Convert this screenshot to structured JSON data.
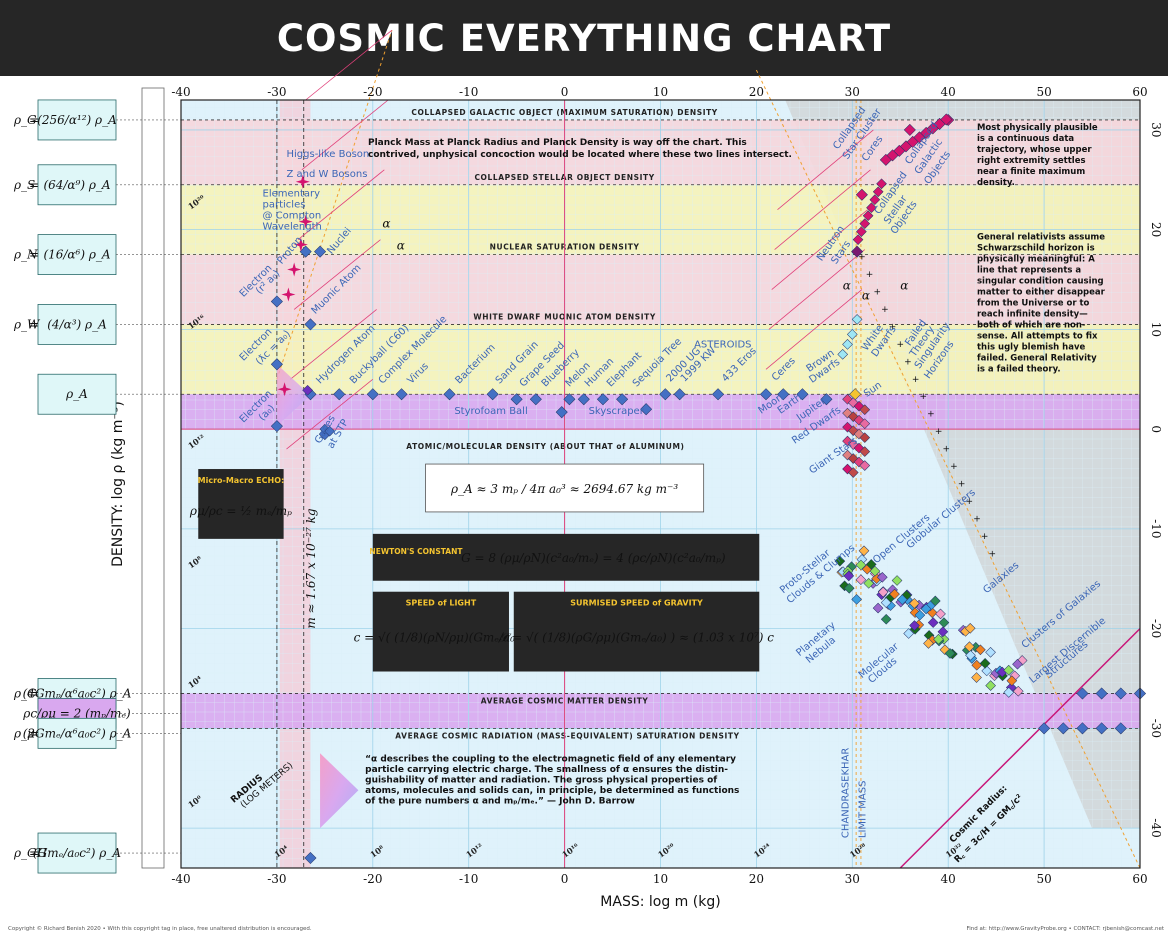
{
  "page": {
    "title": "COSMIC EVERYTHING CHART",
    "footer_left": "Copyright © Richard Benish 2020  •  With this copyright tag in place, free unaltered distribution is encouraged.",
    "footer_right": "Find at: http://www.GravityProbe.org  •  CONTACT: rjbenish@comcast.net"
  },
  "chart_data": {
    "type": "scatter",
    "xlabel": "MASS: log m (kg)",
    "ylabel": "DENSITY: log ρ (kg m⁻³)",
    "xlim": [
      -40,
      60
    ],
    "ylim": [
      -44,
      33
    ],
    "x_ticks": [
      -40,
      -30,
      -20,
      -10,
      0,
      10,
      20,
      30,
      40,
      50,
      60
    ],
    "y_ticks": [
      30,
      20,
      10,
      0,
      -10,
      -20,
      -30,
      -40
    ],
    "radius_ticks": [
      {
        "label": "10⁴",
        "x": -30,
        "y": -43
      },
      {
        "label": "10⁸",
        "x": -20,
        "y": -43
      },
      {
        "label": "10¹²",
        "x": -10,
        "y": -43
      },
      {
        "label": "10¹⁶",
        "x": 0,
        "y": -43
      },
      {
        "label": "10²⁰",
        "x": 10,
        "y": -43
      },
      {
        "label": "10²⁴",
        "x": 20,
        "y": -43
      },
      {
        "label": "10²⁸",
        "x": 30,
        "y": -43
      },
      {
        "label": "10³²",
        "x": 40,
        "y": -43
      },
      {
        "label": "10²⁰",
        "x": -39,
        "y": 22
      },
      {
        "label": "10¹⁶",
        "x": -39,
        "y": 10
      },
      {
        "label": "10¹²",
        "x": -39,
        "y": -2
      },
      {
        "label": "10⁸",
        "x": -39,
        "y": -14
      },
      {
        "label": "10⁴",
        "x": -39,
        "y": -26
      },
      {
        "label": "10⁰",
        "x": -39,
        "y": -38
      }
    ],
    "bands": [
      {
        "label": "COLLAPSED GALACTIC OBJECT (MAXIMUM SATURATION) DENSITY",
        "y_top": 31,
        "y_bottom": 24.5,
        "color": "#f6d6dc"
      },
      {
        "label": "COLLAPSED STELLAR OBJECT DENSITY",
        "y_top": 24.5,
        "y_bottom": 17.5,
        "color": "#f6f3b8"
      },
      {
        "label": "NUCLEAR SATURATION DENSITY",
        "y_top": 17.5,
        "y_bottom": 10.5,
        "color": "#f6d6dc"
      },
      {
        "label": "WHITE DWARF MUONIC ATOM DENSITY",
        "y_top": 10.5,
        "y_bottom": 3.5,
        "color": "#f6f3b8"
      },
      {
        "label": "ATOMIC/MOLECULAR DENSITY (ABOUT THAT of ALUMINUM)",
        "y_top": 3.5,
        "y_bottom": 0,
        "color": "#d9a8ef"
      },
      {
        "label": "AVERAGE COSMIC MATTER DENSITY",
        "y_top": -26.5,
        "y_bottom": -30,
        "color": "#d9a8ef"
      },
      {
        "label": "AVERAGE COSMIC RADIATION (MASS-EQUIVALENT) SATURATION DENSITY",
        "y_top": -30,
        "y_bottom": -30,
        "color": "none"
      }
    ],
    "series": [
      {
        "name": "objects",
        "points": [
          {
            "label": "Electron (a₀)",
            "x": -30,
            "y": 0.3
          },
          {
            "label": "Electron (ƛc = a₀)",
            "x": -30,
            "y": 6.5
          },
          {
            "label": "Electron (r² a₀)",
            "x": -30,
            "y": 12.8
          },
          {
            "label": "Proton",
            "x": -27,
            "y": 17.8
          },
          {
            "label": "Nuclei",
            "x": -25.5,
            "y": 17.8
          },
          {
            "label": "Muonic Atom",
            "x": -26.5,
            "y": 10.5
          },
          {
            "label": "Hydrogen Atom",
            "x": -26.5,
            "y": 3.5
          },
          {
            "label": "Gases at STP",
            "x": -25,
            "y": -0.5
          },
          {
            "label": "Buckyball (C60)",
            "x": -23.5,
            "y": 3.5
          },
          {
            "label": "Complex Molecule",
            "x": -20,
            "y": 3.5
          },
          {
            "label": "Virus",
            "x": -17,
            "y": 3.5
          },
          {
            "label": "Bacterium",
            "x": -12,
            "y": 3.5
          },
          {
            "label": "Sand Grain",
            "x": -7.5,
            "y": 3.5
          },
          {
            "label": "Grape Seed",
            "x": -5,
            "y": 3
          },
          {
            "label": "Blueberry",
            "x": -3,
            "y": 3
          },
          {
            "label": "Styrofoam Ball",
            "x": -0.3,
            "y": 1.7
          },
          {
            "label": "Melon",
            "x": 0.5,
            "y": 3
          },
          {
            "label": "Human",
            "x": 2,
            "y": 3
          },
          {
            "label": "Elephant",
            "x": 4,
            "y": 3
          },
          {
            "label": "Skyscraper",
            "x": 8.5,
            "y": 2
          },
          {
            "label": "Sequoia Tree",
            "x": 6,
            "y": 3
          },
          {
            "label": "2000 UG",
            "x": 10.5,
            "y": 3.5
          },
          {
            "label": "1999 KW",
            "x": 12,
            "y": 3.5
          },
          {
            "label": "433 Eros",
            "x": 16,
            "y": 3.5
          },
          {
            "label": "Ceres",
            "x": 21,
            "y": 3.5
          },
          {
            "label": "Moon",
            "x": 22.8,
            "y": 3.5
          },
          {
            "label": "Earth",
            "x": 24.8,
            "y": 3.5
          },
          {
            "label": "Jupiter",
            "x": 27.3,
            "y": 3
          },
          {
            "label": "Sun",
            "x": 30.3,
            "y": 3.5
          },
          {
            "label": "Neutron Stars",
            "x": 30.5,
            "y": 17.8
          },
          {
            "label": "Collapsed Stellar Objects",
            "x": 31,
            "y": 23.5
          },
          {
            "label": "Collapsed Galactic Objects",
            "x": 40,
            "y": 31
          },
          {
            "label": "Collapsed Star Cluster Cores",
            "x": 36,
            "y": 30
          }
        ]
      }
    ],
    "object_labels": [
      {
        "text": "Higgs-like Boson",
        "x": -29,
        "y": 27.3,
        "rot": 0,
        "color": "#c8385a"
      },
      {
        "text": "Z and W Bosons",
        "x": -29,
        "y": 25.3,
        "rot": 0,
        "color": "#c8385a"
      },
      {
        "text": "Elementary",
        "x": -31.5,
        "y": 23.3,
        "rot": 0,
        "color": "#222"
      },
      {
        "text": "particles",
        "x": -31.5,
        "y": 22.2,
        "rot": 0,
        "color": "#222"
      },
      {
        "text": "@ Compton",
        "x": -31.5,
        "y": 21.1,
        "rot": 0,
        "color": "#222"
      },
      {
        "text": "Wavelength",
        "x": -31.5,
        "y": 20,
        "rot": 0,
        "color": "#222"
      },
      {
        "text": "Proton",
        "x": -29.5,
        "y": 16.5,
        "rot": -50,
        "color": "#3c66b6"
      },
      {
        "text": "Nuclei",
        "x": -24.3,
        "y": 17.5,
        "rot": -50,
        "color": "#3c66b6"
      },
      {
        "text": "Muonic Atom",
        "x": -26,
        "y": 11.5,
        "rot": -45,
        "color": "#3c66b6"
      },
      {
        "text": "Electron",
        "x": -33.5,
        "y": 13.2,
        "rot": -45,
        "color": "#3c66b6"
      },
      {
        "text": "(r² a₀)",
        "x": -31.8,
        "y": 13.5,
        "rot": -45,
        "color": "#3c66b6"
      },
      {
        "text": "Electron",
        "x": -33.5,
        "y": 6.8,
        "rot": -45,
        "color": "#3c66b6"
      },
      {
        "text": "(ƛc = a₀)",
        "x": -31.8,
        "y": 6.4,
        "rot": -45,
        "color": "#3c66b6"
      },
      {
        "text": "Electron",
        "x": -33.5,
        "y": 0.6,
        "rot": -45,
        "color": "#3c66b6"
      },
      {
        "text": "(a₀)",
        "x": -31.5,
        "y": 0.8,
        "rot": -45,
        "color": "#3c66b6"
      },
      {
        "text": "Hydrogen Atom",
        "x": -25.5,
        "y": 4.5,
        "rot": -45,
        "color": "#3c66b6"
      },
      {
        "text": "Buckyball (C60)",
        "x": -22,
        "y": 4.5,
        "rot": -45,
        "color": "#3c66b6"
      },
      {
        "text": "Complex Molecule",
        "x": -19,
        "y": 4.5,
        "rot": -45,
        "color": "#3c66b6"
      },
      {
        "text": "Virus",
        "x": -16,
        "y": 4.5,
        "rot": -45,
        "color": "#3c66b6"
      },
      {
        "text": "Bacterium",
        "x": -11,
        "y": 4.5,
        "rot": -45,
        "color": "#3c66b6"
      },
      {
        "text": "Sand Grain",
        "x": -6.8,
        "y": 4.5,
        "rot": -45,
        "color": "#3c66b6"
      },
      {
        "text": "Grape Seed",
        "x": -4.3,
        "y": 4.2,
        "rot": -45,
        "color": "#3c66b6"
      },
      {
        "text": "Blueberry",
        "x": -2,
        "y": 4.2,
        "rot": -45,
        "color": "#3c66b6"
      },
      {
        "text": "Melon",
        "x": 0.5,
        "y": 4.2,
        "rot": -45,
        "color": "#3c66b6"
      },
      {
        "text": "Human",
        "x": 2.5,
        "y": 4.2,
        "rot": -45,
        "color": "#3c66b6"
      },
      {
        "text": "Elephant",
        "x": 4.8,
        "y": 4.2,
        "rot": -45,
        "color": "#3c66b6"
      },
      {
        "text": "Sequoia Tree",
        "x": 7.5,
        "y": 4.2,
        "rot": -45,
        "color": "#3c66b6"
      },
      {
        "text": "2000 UG",
        "x": 11,
        "y": 4.7,
        "rot": -45,
        "color": "#3c66b6"
      },
      {
        "text": "1999 KW",
        "x": 12.5,
        "y": 4.7,
        "rot": -45,
        "color": "#3c66b6"
      },
      {
        "text": "433 Eros",
        "x": 16.8,
        "y": 4.7,
        "rot": -45,
        "color": "#3c66b6"
      },
      {
        "text": "Ceres",
        "x": 22,
        "y": 4.8,
        "rot": -45,
        "color": "#3c66b6"
      },
      {
        "text": "Styrofoam Ball",
        "x": -11.5,
        "y": 1.5,
        "rot": 0,
        "color": "#3c66b6"
      },
      {
        "text": "Skyscraper",
        "x": 2.5,
        "y": 1.5,
        "rot": 0,
        "color": "#3c66b6"
      },
      {
        "text": "Gases",
        "x": -25.5,
        "y": -1.5,
        "rot": -60,
        "color": "#3c66b6"
      },
      {
        "text": "at STP",
        "x": -24.2,
        "y": -2,
        "rot": -60,
        "color": "#3c66b6"
      },
      {
        "text": "ASTEROIDS",
        "x": 13.5,
        "y": 8.2,
        "rot": 0,
        "color": "#3c66b6"
      },
      {
        "text": "Moon",
        "x": 20.5,
        "y": 1.5,
        "rot": -35,
        "color": "#3c66b6"
      },
      {
        "text": "Earth",
        "x": 22.5,
        "y": 1.5,
        "rot": -35,
        "color": "#3c66b6"
      },
      {
        "text": "Jupiter",
        "x": 24.5,
        "y": 0.8,
        "rot": -35,
        "color": "#3c66b6"
      },
      {
        "text": "Red Dwarfs",
        "x": 24,
        "y": -1.5,
        "rot": -35,
        "color": "#3c66b6"
      },
      {
        "text": "Brown",
        "x": 25.5,
        "y": 5.7,
        "rot": -35,
        "color": "#3c66b6"
      },
      {
        "text": "Dwarfs",
        "x": 25.8,
        "y": 4.6,
        "rot": -35,
        "color": "#3c66b6"
      },
      {
        "text": "Sun",
        "x": 31.5,
        "y": 3.2,
        "rot": -35,
        "color": "#3c66b6"
      },
      {
        "text": "Giant Stars",
        "x": 25.8,
        "y": -4.5,
        "rot": -35,
        "color": "#3c66b6"
      },
      {
        "text": "White",
        "x": 31.5,
        "y": 7.8,
        "rot": -55,
        "color": "#3c66b6"
      },
      {
        "text": "Dwarfs",
        "x": 32.5,
        "y": 7.2,
        "rot": -55,
        "color": "#3c66b6"
      },
      {
        "text": "Neutron",
        "x": 26.8,
        "y": 16.8,
        "rot": -55,
        "color": "#3c66b6"
      },
      {
        "text": "Stars",
        "x": 28.3,
        "y": 16.5,
        "rot": -55,
        "color": "#3c66b6"
      },
      {
        "text": "Collapsed",
        "x": 32.8,
        "y": 21.5,
        "rot": -55,
        "color": "#3c66b6"
      },
      {
        "text": "Stellar",
        "x": 33.8,
        "y": 20.5,
        "rot": -55,
        "color": "#3c66b6"
      },
      {
        "text": "Objects",
        "x": 34.5,
        "y": 19.5,
        "rot": -55,
        "color": "#3c66b6"
      },
      {
        "text": "Collapsed",
        "x": 28.5,
        "y": 28,
        "rot": -55,
        "color": "#3c66b6"
      },
      {
        "text": "Star Cluster",
        "x": 29.5,
        "y": 27,
        "rot": -55,
        "color": "#3c66b6"
      },
      {
        "text": "Cores",
        "x": 31.5,
        "y": 26.8,
        "rot": -55,
        "color": "#3c66b6"
      },
      {
        "text": "Collapsed",
        "x": 36,
        "y": 26.5,
        "rot": -55,
        "color": "#3c66b6"
      },
      {
        "text": "Galactic",
        "x": 37,
        "y": 25.5,
        "rot": -55,
        "color": "#3c66b6"
      },
      {
        "text": "Objects",
        "x": 38,
        "y": 24.5,
        "rot": -55,
        "color": "#3c66b6"
      },
      {
        "text": "Failed",
        "x": 36,
        "y": 8.3,
        "rot": -55,
        "color": "#3c66b6"
      },
      {
        "text": "Theory",
        "x": 36.5,
        "y": 7.2,
        "rot": -55,
        "color": "#3c66b6"
      },
      {
        "text": "Singularity",
        "x": 37,
        "y": 6,
        "rot": -55,
        "color": "#3c66b6"
      },
      {
        "text": "Horizons",
        "x": 38,
        "y": 5,
        "rot": -55,
        "color": "#3c66b6"
      },
      {
        "text": "Proto-Stellar",
        "x": 22.8,
        "y": -16.5,
        "rot": -40,
        "color": "#3c66b6"
      },
      {
        "text": "Clouds & Clumps",
        "x": 23.5,
        "y": -17.5,
        "rot": -40,
        "color": "#3c66b6"
      },
      {
        "text": "Open Clusters",
        "x": 32.5,
        "y": -13.5,
        "rot": -40,
        "color": "#3c66b6"
      },
      {
        "text": "Globular Clusters",
        "x": 36,
        "y": -12,
        "rot": -40,
        "color": "#3c66b6"
      },
      {
        "text": "Galaxies",
        "x": 44,
        "y": -16.5,
        "rot": -40,
        "color": "#3c66b6"
      },
      {
        "text": "Clusters of Galaxies",
        "x": 48,
        "y": -22,
        "rot": -40,
        "color": "#3c66b6"
      },
      {
        "text": "Largest Discernible",
        "x": 48.8,
        "y": -25.5,
        "rot": -40,
        "color": "#3c66b6"
      },
      {
        "text": "Structures",
        "x": 50.5,
        "y": -25,
        "rot": -40,
        "color": "#3c66b6"
      },
      {
        "text": "Planetary",
        "x": 24.5,
        "y": -22.8,
        "rot": -40,
        "color": "#3c66b6"
      },
      {
        "text": "Nebula",
        "x": 25.5,
        "y": -23.5,
        "rot": -40,
        "color": "#3c66b6"
      },
      {
        "text": "Molecular",
        "x": 31,
        "y": -25,
        "rot": -40,
        "color": "#3c66b6"
      },
      {
        "text": "Clouds",
        "x": 32,
        "y": -25.5,
        "rot": -40,
        "color": "#3c66b6"
      }
    ],
    "vertical_labels": {
      "chandrasekhar": "CHANDRASEKHAR",
      "limit_mass": "LIMIT MASS",
      "cosmic_radius": "Cosmic Radius:",
      "cosmic_radius_eq": "R꜀ = 3c/H = GM꜀/c²",
      "radius_log": "RADIUS",
      "radius_log2": "(LOG METERS)",
      "planck_mass": "m ≈ 1.67 x 10⁻²⁷ kg",
      "alpha": "α"
    },
    "annotations": {
      "planck_line1": "Planck Mass at Planck Radius and Planck Density is way off the chart. This",
      "planck_line2": "contrived, unphysical concoction would be located where these two lines intersect.",
      "right_note1": [
        "Most physically plausible",
        "is a continuous data",
        "trajectory, whose upper",
        "right extremity settles",
        "near a finite maximum",
        "density."
      ],
      "right_note2": [
        "General relativists assume",
        "Schwarzschild horizon is",
        "physically meaningful: A",
        "line that represents a",
        "singular condition causing",
        "matter to either disappear",
        "from the Universe or to",
        "reach infinite density—",
        "both of which are non-",
        "sense. All attempts to fix",
        "this ugly blemish have",
        "failed. General Relativity",
        "is a failed theory."
      ],
      "quote": [
        "“α describes the coupling to the electromagnetic field of any elementary",
        "particle carrying electric charge. The smallness of α ensures the distin-",
        "guishability of matter and radiation. The gross physical properties of",
        "atoms, molecules and solids can, in principle, be determined as functions",
        "of the pure numbers α and mₚ/mₑ.” — John D. Barrow"
      ],
      "density_formula": "ρ_A ≈ 3 mₚ / 4π a₀³ ≈ 2694.67 kg m⁻³",
      "newton_title": "NEWTON'S CONSTANT",
      "newton_formula": "G = 8 (ρμ/ρN)(c²a₀/mₑ) = 4 (ρc/ρN)(c²a₀/mₚ)",
      "light_title": "SPEED of LIGHT",
      "light_formula": "c = √( (1/8)(ρN/ρμ)(Gmₑ/a₀) )",
      "gravity_title": "SURMISED SPEED of GRAVITY",
      "gravity_formula": "𝒮 = √( (1/8)(ρG/ρμ)(Gmₑ/a₀) ) ≈ (1.03 x 10⁷) c",
      "echo_title": "Micro-Macro ECHO:",
      "echo_formula": "ρμ/ρc = ½ mₑ/mₚ"
    },
    "left_formulas": [
      {
        "sym": "ρ_G",
        "expr": "(256/α¹²) ρ_A",
        "y": 31
      },
      {
        "sym": "ρ_S",
        "expr": "(64/α⁹) ρ_A",
        "y": 24.5
      },
      {
        "sym": "ρ_N",
        "expr": "(16/α⁶) ρ_A",
        "y": 17.5
      },
      {
        "sym": "ρ_W",
        "expr": "(4/α³) ρ_A",
        "y": 10.5
      },
      {
        "sym": "",
        "expr": "ρ_A",
        "y": 3.5
      },
      {
        "sym": "ρ_C",
        "expr": "(4Gmₚ/α⁶a₀c²) ρ_A",
        "y": -26.5
      },
      {
        "sym": "",
        "expr": "ρc/ρμ = 2 (mₚ/mₑ)",
        "y": -28.5
      },
      {
        "sym": "ρ_μ",
        "expr": "(2Gmₑ/α⁶a₀c²) ρ_A",
        "y": -30.5
      },
      {
        "sym": "ρ_GH",
        "expr": "(Gmₑ/a₀c²) ρ_A",
        "y": -42.5
      }
    ],
    "colors": {
      "pink_band": "#f6d6dc",
      "yellow_band": "#f6f3b8",
      "purple_band": "#d9a8ef",
      "blue_bg": "#dff2fb",
      "blue_marker": "#4470c4",
      "magenta_marker": "#d4146e",
      "grey_bg": "#cfd2d3",
      "title_bg": "#262626"
    }
  }
}
